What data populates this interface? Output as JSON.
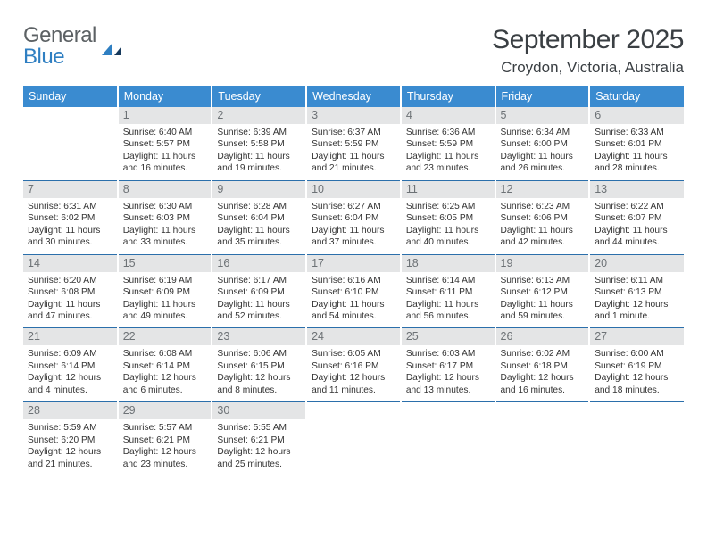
{
  "brand": {
    "part1": "General",
    "part2": "Blue"
  },
  "title": "September 2025",
  "subtitle": "Croydon, Victoria, Australia",
  "colors": {
    "header_bg": "#3a8bd0",
    "header_text": "#ffffff",
    "daynum_bg": "#e4e5e6",
    "daynum_text": "#6d7276",
    "rule": "#2b6fab",
    "body_text": "#333333",
    "title_text": "#3a3f43",
    "logo_gray": "#5c6164",
    "logo_blue": "#2f7fc2"
  },
  "day_headers": [
    "Sunday",
    "Monday",
    "Tuesday",
    "Wednesday",
    "Thursday",
    "Friday",
    "Saturday"
  ],
  "weeks": [
    [
      {
        "day": "",
        "lines": []
      },
      {
        "day": "1",
        "lines": [
          "Sunrise: 6:40 AM",
          "Sunset: 5:57 PM",
          "Daylight: 11 hours and 16 minutes."
        ]
      },
      {
        "day": "2",
        "lines": [
          "Sunrise: 6:39 AM",
          "Sunset: 5:58 PM",
          "Daylight: 11 hours and 19 minutes."
        ]
      },
      {
        "day": "3",
        "lines": [
          "Sunrise: 6:37 AM",
          "Sunset: 5:59 PM",
          "Daylight: 11 hours and 21 minutes."
        ]
      },
      {
        "day": "4",
        "lines": [
          "Sunrise: 6:36 AM",
          "Sunset: 5:59 PM",
          "Daylight: 11 hours and 23 minutes."
        ]
      },
      {
        "day": "5",
        "lines": [
          "Sunrise: 6:34 AM",
          "Sunset: 6:00 PM",
          "Daylight: 11 hours and 26 minutes."
        ]
      },
      {
        "day": "6",
        "lines": [
          "Sunrise: 6:33 AM",
          "Sunset: 6:01 PM",
          "Daylight: 11 hours and 28 minutes."
        ]
      }
    ],
    [
      {
        "day": "7",
        "lines": [
          "Sunrise: 6:31 AM",
          "Sunset: 6:02 PM",
          "Daylight: 11 hours and 30 minutes."
        ]
      },
      {
        "day": "8",
        "lines": [
          "Sunrise: 6:30 AM",
          "Sunset: 6:03 PM",
          "Daylight: 11 hours and 33 minutes."
        ]
      },
      {
        "day": "9",
        "lines": [
          "Sunrise: 6:28 AM",
          "Sunset: 6:04 PM",
          "Daylight: 11 hours and 35 minutes."
        ]
      },
      {
        "day": "10",
        "lines": [
          "Sunrise: 6:27 AM",
          "Sunset: 6:04 PM",
          "Daylight: 11 hours and 37 minutes."
        ]
      },
      {
        "day": "11",
        "lines": [
          "Sunrise: 6:25 AM",
          "Sunset: 6:05 PM",
          "Daylight: 11 hours and 40 minutes."
        ]
      },
      {
        "day": "12",
        "lines": [
          "Sunrise: 6:23 AM",
          "Sunset: 6:06 PM",
          "Daylight: 11 hours and 42 minutes."
        ]
      },
      {
        "day": "13",
        "lines": [
          "Sunrise: 6:22 AM",
          "Sunset: 6:07 PM",
          "Daylight: 11 hours and 44 minutes."
        ]
      }
    ],
    [
      {
        "day": "14",
        "lines": [
          "Sunrise: 6:20 AM",
          "Sunset: 6:08 PM",
          "Daylight: 11 hours and 47 minutes."
        ]
      },
      {
        "day": "15",
        "lines": [
          "Sunrise: 6:19 AM",
          "Sunset: 6:09 PM",
          "Daylight: 11 hours and 49 minutes."
        ]
      },
      {
        "day": "16",
        "lines": [
          "Sunrise: 6:17 AM",
          "Sunset: 6:09 PM",
          "Daylight: 11 hours and 52 minutes."
        ]
      },
      {
        "day": "17",
        "lines": [
          "Sunrise: 6:16 AM",
          "Sunset: 6:10 PM",
          "Daylight: 11 hours and 54 minutes."
        ]
      },
      {
        "day": "18",
        "lines": [
          "Sunrise: 6:14 AM",
          "Sunset: 6:11 PM",
          "Daylight: 11 hours and 56 minutes."
        ]
      },
      {
        "day": "19",
        "lines": [
          "Sunrise: 6:13 AM",
          "Sunset: 6:12 PM",
          "Daylight: 11 hours and 59 minutes."
        ]
      },
      {
        "day": "20",
        "lines": [
          "Sunrise: 6:11 AM",
          "Sunset: 6:13 PM",
          "Daylight: 12 hours and 1 minute."
        ]
      }
    ],
    [
      {
        "day": "21",
        "lines": [
          "Sunrise: 6:09 AM",
          "Sunset: 6:14 PM",
          "Daylight: 12 hours and 4 minutes."
        ]
      },
      {
        "day": "22",
        "lines": [
          "Sunrise: 6:08 AM",
          "Sunset: 6:14 PM",
          "Daylight: 12 hours and 6 minutes."
        ]
      },
      {
        "day": "23",
        "lines": [
          "Sunrise: 6:06 AM",
          "Sunset: 6:15 PM",
          "Daylight: 12 hours and 8 minutes."
        ]
      },
      {
        "day": "24",
        "lines": [
          "Sunrise: 6:05 AM",
          "Sunset: 6:16 PM",
          "Daylight: 12 hours and 11 minutes."
        ]
      },
      {
        "day": "25",
        "lines": [
          "Sunrise: 6:03 AM",
          "Sunset: 6:17 PM",
          "Daylight: 12 hours and 13 minutes."
        ]
      },
      {
        "day": "26",
        "lines": [
          "Sunrise: 6:02 AM",
          "Sunset: 6:18 PM",
          "Daylight: 12 hours and 16 minutes."
        ]
      },
      {
        "day": "27",
        "lines": [
          "Sunrise: 6:00 AM",
          "Sunset: 6:19 PM",
          "Daylight: 12 hours and 18 minutes."
        ]
      }
    ],
    [
      {
        "day": "28",
        "lines": [
          "Sunrise: 5:59 AM",
          "Sunset: 6:20 PM",
          "Daylight: 12 hours and 21 minutes."
        ]
      },
      {
        "day": "29",
        "lines": [
          "Sunrise: 5:57 AM",
          "Sunset: 6:21 PM",
          "Daylight: 12 hours and 23 minutes."
        ]
      },
      {
        "day": "30",
        "lines": [
          "Sunrise: 5:55 AM",
          "Sunset: 6:21 PM",
          "Daylight: 12 hours and 25 minutes."
        ]
      },
      {
        "day": "",
        "lines": []
      },
      {
        "day": "",
        "lines": []
      },
      {
        "day": "",
        "lines": []
      },
      {
        "day": "",
        "lines": []
      }
    ]
  ]
}
